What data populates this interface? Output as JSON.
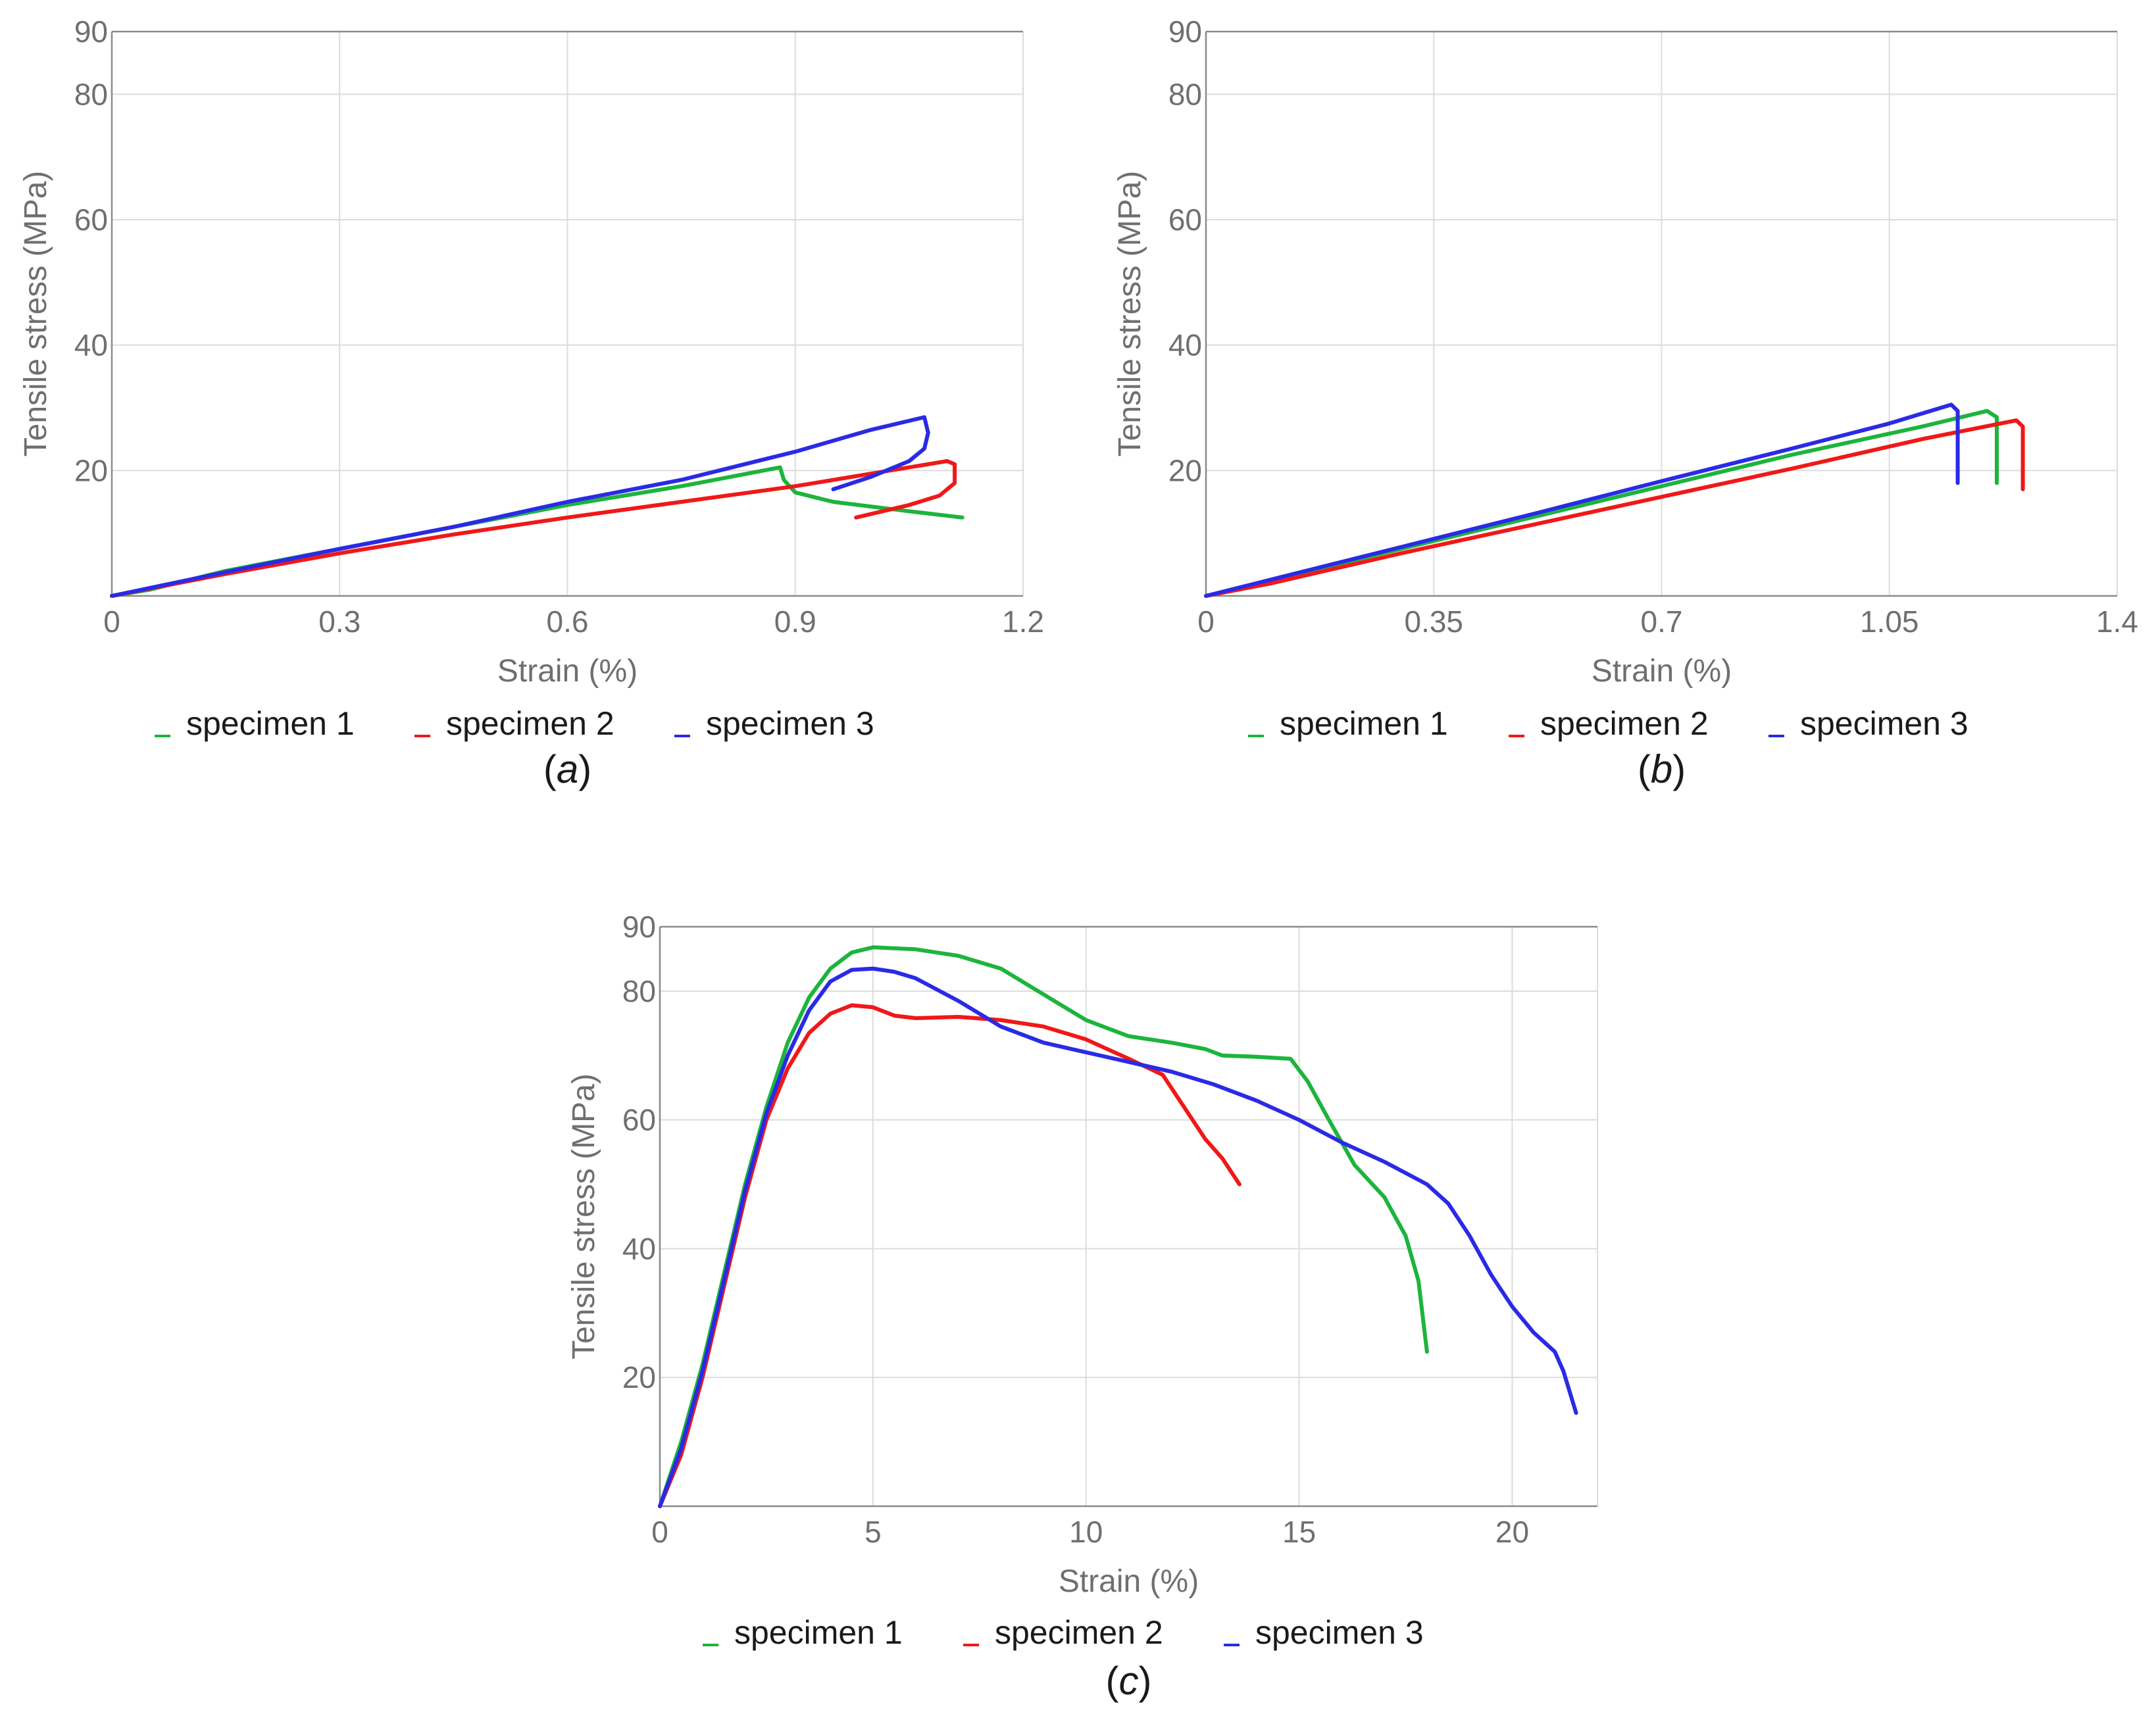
{
  "colors": {
    "specimen_1": "#1db43c",
    "specimen_2": "#f01818",
    "specimen_3": "#2a2ae6"
  },
  "chart_data": [
    {
      "type": "line",
      "panel_label": "a",
      "xlabel": "Strain (%)",
      "ylabel": "Tensile stress (MPa)",
      "xlim": [
        0,
        1.2
      ],
      "ylim": [
        0,
        90
      ],
      "xticks": [
        0,
        0.3,
        0.6,
        0.9,
        1.2
      ],
      "yticks": [
        20,
        40,
        60,
        80,
        90
      ],
      "grid": true,
      "legend": "bottom",
      "series": [
        {
          "name": "specimen 1",
          "color": "#1db43c",
          "points": [
            [
              0,
              0
            ],
            [
              0.05,
              1
            ],
            [
              0.15,
              4
            ],
            [
              0.3,
              7.5
            ],
            [
              0.45,
              11
            ],
            [
              0.6,
              14.5
            ],
            [
              0.75,
              17.5
            ],
            [
              0.88,
              20.5
            ],
            [
              0.885,
              18.5
            ],
            [
              0.9,
              16.5
            ],
            [
              0.95,
              15
            ],
            [
              1.05,
              13.5
            ],
            [
              1.12,
              12.5
            ]
          ]
        },
        {
          "name": "specimen 2",
          "color": "#f01818",
          "points": [
            [
              0,
              0
            ],
            [
              0.15,
              3.5
            ],
            [
              0.3,
              6.8
            ],
            [
              0.45,
              9.8
            ],
            [
              0.6,
              12.5
            ],
            [
              0.75,
              15
            ],
            [
              0.9,
              17.5
            ],
            [
              1.0,
              19.5
            ],
            [
              1.1,
              21.5
            ],
            [
              1.11,
              21
            ],
            [
              1.11,
              18
            ],
            [
              1.09,
              16
            ],
            [
              1.05,
              14.5
            ],
            [
              0.98,
              12.5
            ]
          ]
        },
        {
          "name": "specimen 3",
          "color": "#2a2ae6",
          "points": [
            [
              0,
              0
            ],
            [
              0.15,
              3.8
            ],
            [
              0.3,
              7.5
            ],
            [
              0.45,
              11
            ],
            [
              0.6,
              15
            ],
            [
              0.75,
              18.5
            ],
            [
              0.9,
              23
            ],
            [
              1.0,
              26.5
            ],
            [
              1.07,
              28.5
            ],
            [
              1.075,
              26
            ],
            [
              1.07,
              23.5
            ],
            [
              1.05,
              21.5
            ],
            [
              1.0,
              19
            ],
            [
              0.95,
              17
            ]
          ]
        }
      ]
    },
    {
      "type": "line",
      "panel_label": "b",
      "xlabel": "Strain (%)",
      "ylabel": "Tensile stress (MPa)",
      "xlim": [
        0,
        1.4
      ],
      "ylim": [
        0,
        90
      ],
      "xticks": [
        0,
        0.35,
        0.7,
        1.05,
        1.4
      ],
      "xtick_labels": [
        "0",
        "0.35",
        "0.7",
        "1.05",
        "1.4"
      ],
      "yticks": [
        20,
        40,
        60,
        80,
        90
      ],
      "grid": true,
      "legend": "bottom",
      "series": [
        {
          "name": "specimen 1",
          "color": "#1db43c",
          "points": [
            [
              0,
              0
            ],
            [
              0.1,
              2.5
            ],
            [
              0.3,
              7.5
            ],
            [
              0.5,
              12.5
            ],
            [
              0.7,
              17.5
            ],
            [
              0.9,
              22.5
            ],
            [
              1.1,
              27
            ],
            [
              1.2,
              29.5
            ],
            [
              1.215,
              28.5
            ],
            [
              1.215,
              18
            ]
          ]
        },
        {
          "name": "specimen 2",
          "color": "#f01818",
          "points": [
            [
              0,
              0
            ],
            [
              0.1,
              2
            ],
            [
              0.3,
              6.8
            ],
            [
              0.5,
              11.3
            ],
            [
              0.7,
              15.8
            ],
            [
              0.9,
              20.3
            ],
            [
              1.1,
              25
            ],
            [
              1.245,
              28
            ],
            [
              1.255,
              27
            ],
            [
              1.255,
              17
            ]
          ]
        },
        {
          "name": "specimen 3",
          "color": "#2a2ae6",
          "points": [
            [
              0,
              0
            ],
            [
              0.1,
              2.6
            ],
            [
              0.3,
              7.8
            ],
            [
              0.5,
              13
            ],
            [
              0.7,
              18.3
            ],
            [
              0.9,
              23.5
            ],
            [
              1.05,
              27.5
            ],
            [
              1.145,
              30.5
            ],
            [
              1.155,
              29.5
            ],
            [
              1.155,
              18
            ]
          ]
        }
      ]
    },
    {
      "type": "line",
      "panel_label": "c",
      "xlabel": "Strain (%)",
      "ylabel": "Tensile stress (MPa)",
      "xlim": [
        0,
        22
      ],
      "ylim": [
        0,
        90
      ],
      "xticks": [
        0,
        5,
        10,
        15,
        20
      ],
      "yticks": [
        20,
        40,
        60,
        80,
        90
      ],
      "grid": true,
      "legend": "bottom",
      "series": [
        {
          "name": "specimen 1",
          "color": "#1db43c",
          "points": [
            [
              0,
              0
            ],
            [
              0.5,
              10
            ],
            [
              1,
              22
            ],
            [
              1.5,
              36
            ],
            [
              2,
              50
            ],
            [
              2.5,
              62
            ],
            [
              3,
              72
            ],
            [
              3.5,
              79
            ],
            [
              4,
              83.5
            ],
            [
              4.5,
              86
            ],
            [
              5,
              86.8
            ],
            [
              6,
              86.5
            ],
            [
              7,
              85.5
            ],
            [
              8,
              83.5
            ],
            [
              9,
              79.5
            ],
            [
              10,
              75.5
            ],
            [
              11,
              73
            ],
            [
              12,
              72
            ],
            [
              12.8,
              71
            ],
            [
              13.2,
              70
            ],
            [
              14,
              69.8
            ],
            [
              14.8,
              69.5
            ],
            [
              15.2,
              66
            ],
            [
              15.7,
              60
            ],
            [
              16.3,
              53
            ],
            [
              17,
              48
            ],
            [
              17.5,
              42
            ],
            [
              17.8,
              35
            ],
            [
              18,
              24
            ]
          ]
        },
        {
          "name": "specimen 2",
          "color": "#f01818",
          "points": [
            [
              0,
              0
            ],
            [
              0.5,
              8
            ],
            [
              1,
              20
            ],
            [
              1.5,
              34
            ],
            [
              2,
              48
            ],
            [
              2.5,
              60
            ],
            [
              3,
              68
            ],
            [
              3.5,
              73.5
            ],
            [
              4,
              76.5
            ],
            [
              4.5,
              77.8
            ],
            [
              5,
              77.5
            ],
            [
              5.5,
              76.2
            ],
            [
              6,
              75.8
            ],
            [
              7,
              76
            ],
            [
              8,
              75.5
            ],
            [
              9,
              74.5
            ],
            [
              10,
              72.5
            ],
            [
              11,
              69.5
            ],
            [
              11.8,
              67
            ],
            [
              12.3,
              62
            ],
            [
              12.8,
              57
            ],
            [
              13.2,
              54
            ],
            [
              13.6,
              50
            ]
          ]
        },
        {
          "name": "specimen 3",
          "color": "#2a2ae6",
          "points": [
            [
              0,
              0
            ],
            [
              0.5,
              9
            ],
            [
              1,
              21
            ],
            [
              1.5,
              35
            ],
            [
              2,
              49
            ],
            [
              2.5,
              61
            ],
            [
              3,
              70
            ],
            [
              3.5,
              77
            ],
            [
              4,
              81.5
            ],
            [
              4.5,
              83.3
            ],
            [
              5,
              83.5
            ],
            [
              5.5,
              83
            ],
            [
              6,
              82
            ],
            [
              7,
              78.5
            ],
            [
              8,
              74.5
            ],
            [
              9,
              72
            ],
            [
              10,
              70.5
            ],
            [
              11,
              69
            ],
            [
              12,
              67.5
            ],
            [
              13,
              65.5
            ],
            [
              14,
              63
            ],
            [
              15,
              60
            ],
            [
              16,
              56.5
            ],
            [
              17,
              53.5
            ],
            [
              18,
              50
            ],
            [
              18.5,
              47
            ],
            [
              19,
              42
            ],
            [
              19.5,
              36
            ],
            [
              20,
              31
            ],
            [
              20.5,
              27
            ],
            [
              21,
              24
            ],
            [
              21.2,
              21
            ],
            [
              21.5,
              14.5
            ]
          ]
        }
      ]
    }
  ]
}
